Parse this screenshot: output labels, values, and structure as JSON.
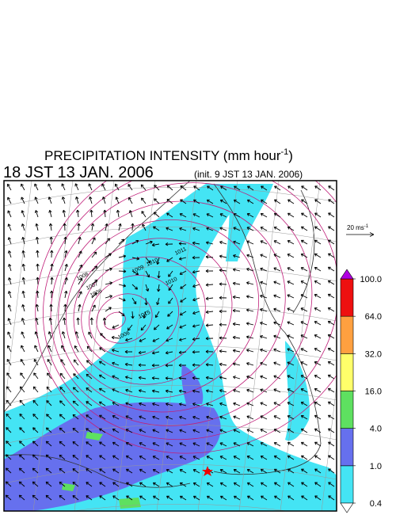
{
  "map": {
    "title": {
      "text": "PRECIPITATION INTENSITY (mm hour",
      "sup": "-1",
      "end": ")"
    },
    "valid_time": "18 JST 13 JAN. 2006",
    "init_time": "(init. 9 JST 13 JAN. 2006)",
    "wind_scale": {
      "text": "20 ms",
      "sup": "-1"
    },
    "contour_labels": [
      "1008",
      "1007",
      "1006",
      "1009",
      "1010",
      "1011",
      "1015",
      "1006",
      "1010"
    ],
    "colorbar": {
      "ticks": [
        {
          "value": 0.4,
          "label": "0.4"
        },
        {
          "value": 1,
          "label": "1.0"
        },
        {
          "value": 4,
          "label": "4.0"
        },
        {
          "value": 16,
          "label": "16.0"
        },
        {
          "value": 32,
          "label": "32.0"
        },
        {
          "value": 64,
          "label": "64.0"
        },
        {
          "value": 100,
          "label": "100.0"
        }
      ],
      "colors": [
        "#44e4f4",
        "#6670ee",
        "#5ee060",
        "#ffff6a",
        "#ffa040",
        "#ee1010"
      ],
      "over_color": "#b000e0",
      "under_color": "#ffffff"
    }
  }
}
